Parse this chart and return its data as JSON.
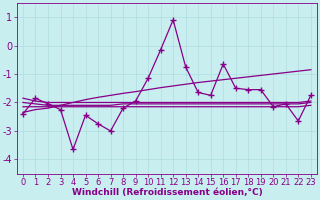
{
  "xlabel": "Windchill (Refroidissement éolien,°C)",
  "background_color": "#c8eef0",
  "grid_color": "#b0dde0",
  "line_color": "#880088",
  "x": [
    0,
    1,
    2,
    3,
    4,
    5,
    6,
    7,
    8,
    9,
    10,
    11,
    12,
    13,
    14,
    15,
    16,
    17,
    18,
    19,
    20,
    21,
    22,
    23
  ],
  "y_main": [
    -2.4,
    -1.85,
    -2.05,
    -2.25,
    -3.65,
    -2.45,
    -2.75,
    -3.0,
    -2.2,
    -1.95,
    -1.15,
    -0.15,
    0.9,
    -0.75,
    -1.65,
    -1.75,
    -0.65,
    -1.5,
    -1.55,
    -1.55,
    -2.15,
    -2.05,
    -2.65,
    -1.75
  ],
  "y_trend": [
    -2.35,
    -2.25,
    -2.2,
    -2.1,
    -2.0,
    -1.9,
    -1.82,
    -1.75,
    -1.68,
    -1.62,
    -1.55,
    -1.48,
    -1.42,
    -1.36,
    -1.3,
    -1.25,
    -1.2,
    -1.15,
    -1.1,
    -1.05,
    -1.0,
    -0.95,
    -0.9,
    -0.85
  ],
  "y_flat1": [
    -1.85,
    -1.95,
    -2.0,
    -2.0,
    -2.0,
    -2.0,
    -2.0,
    -2.0,
    -2.0,
    -2.0,
    -2.0,
    -2.0,
    -2.0,
    -2.0,
    -2.0,
    -2.0,
    -2.0,
    -2.0,
    -2.0,
    -2.0,
    -2.0,
    -2.0,
    -2.0,
    -1.95
  ],
  "y_flat2": [
    -2.0,
    -2.05,
    -2.1,
    -2.1,
    -2.1,
    -2.1,
    -2.1,
    -2.1,
    -2.05,
    -2.05,
    -2.05,
    -2.05,
    -2.05,
    -2.05,
    -2.05,
    -2.05,
    -2.05,
    -2.05,
    -2.05,
    -2.05,
    -2.05,
    -2.05,
    -2.05,
    -2.0
  ],
  "y_flat3": [
    -2.15,
    -2.15,
    -2.15,
    -2.15,
    -2.15,
    -2.15,
    -2.15,
    -2.15,
    -2.15,
    -2.15,
    -2.15,
    -2.15,
    -2.15,
    -2.15,
    -2.15,
    -2.15,
    -2.15,
    -2.15,
    -2.15,
    -2.15,
    -2.15,
    -2.15,
    -2.15,
    -2.1
  ],
  "ylim": [
    -4.5,
    1.5
  ],
  "yticks": [
    -4,
    -3,
    -2,
    -1,
    0,
    1
  ],
  "xlim": [
    -0.5,
    23.5
  ],
  "xticks": [
    0,
    1,
    2,
    3,
    4,
    5,
    6,
    7,
    8,
    9,
    10,
    11,
    12,
    13,
    14,
    15,
    16,
    17,
    18,
    19,
    20,
    21,
    22,
    23
  ],
  "marker": "+",
  "markersize": 5,
  "linewidth": 0.9,
  "xlabel_fontsize": 6.5,
  "tick_fontsize": 6,
  "tick_color": "#880088",
  "label_color": "#880088"
}
